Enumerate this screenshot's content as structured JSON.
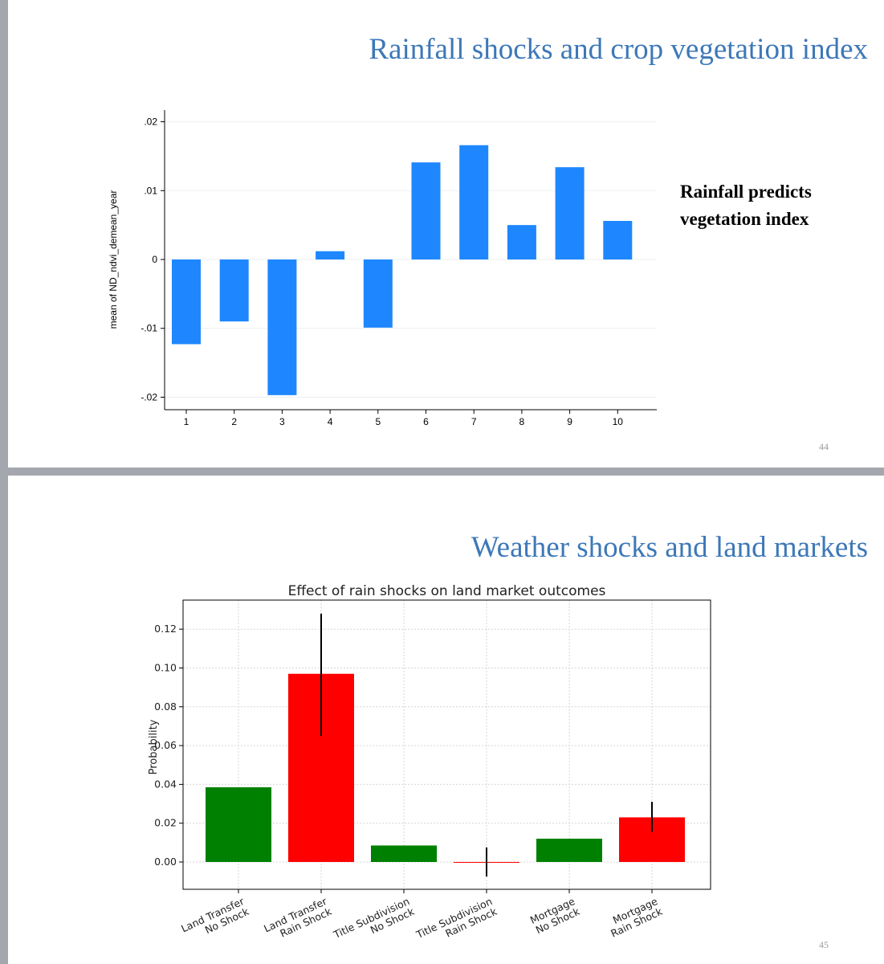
{
  "slides": [
    {
      "title": "Rainfall shocks and crop vegetation index",
      "note_line1": "Rainfall predicts",
      "note_line2": "vegetation index",
      "page_number": "44"
    },
    {
      "title": "Weather shocks and land markets",
      "page_number": "45"
    }
  ],
  "chart_data": [
    {
      "type": "bar",
      "title": "",
      "xlabel": "",
      "ylabel": "mean of ND_ndvi_demean_year",
      "categories": [
        "1",
        "2",
        "3",
        "4",
        "5",
        "6",
        "7",
        "8",
        "9",
        "10"
      ],
      "values": [
        -0.0123,
        -0.009,
        -0.0197,
        0.0012,
        -0.0099,
        0.0141,
        0.0166,
        0.005,
        0.0134,
        0.0056
      ],
      "ylim": [
        -0.02,
        0.02
      ],
      "yticks": [
        -0.02,
        -0.01,
        0,
        0.01,
        0.02
      ],
      "ytick_labels": [
        "-.02",
        "-.01",
        "0",
        ".01",
        ".02"
      ],
      "grid": true,
      "bar_color": "#1e87ff"
    },
    {
      "type": "bar",
      "title": "Effect of rain shocks on land market outcomes",
      "xlabel": "",
      "ylabel": "Probability",
      "categories": [
        [
          "Land Transfer",
          "No Shock"
        ],
        [
          "Land Transfer",
          "Rain Shock"
        ],
        [
          "Title Subdivision",
          "No Shock"
        ],
        [
          "Title Subdivision",
          "Rain Shock"
        ],
        [
          "Mortgage",
          "No Shock"
        ],
        [
          "Mortgage",
          "Rain Shock"
        ]
      ],
      "values": [
        0.0385,
        0.097,
        0.0085,
        0.0,
        0.012,
        0.023
      ],
      "error_low": [
        0.0385,
        0.065,
        0.0085,
        -0.0075,
        0.012,
        0.0155
      ],
      "error_high": [
        0.0385,
        0.128,
        0.0085,
        0.0075,
        0.012,
        0.031
      ],
      "colors": [
        "#008000",
        "#ff0000",
        "#008000",
        "#ff0000",
        "#008000",
        "#ff0000"
      ],
      "ylim": [
        -0.014,
        0.135
      ],
      "yticks": [
        0,
        0.02,
        0.04,
        0.06,
        0.08,
        0.1,
        0.12
      ],
      "ytick_labels": [
        "0.00",
        "0.02",
        "0.04",
        "0.06",
        "0.08",
        "0.10",
        "0.12"
      ],
      "grid": true
    }
  ]
}
